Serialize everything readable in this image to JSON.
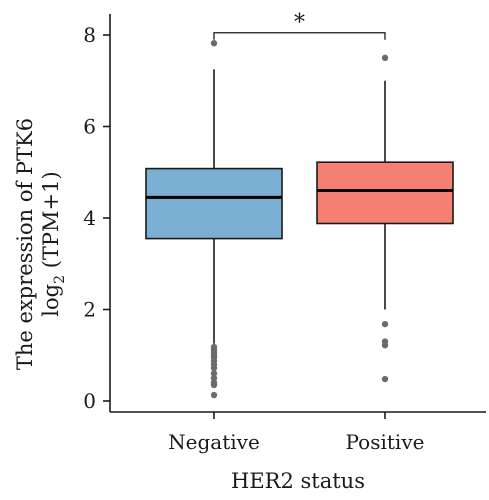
{
  "chart_data": {
    "type": "boxplot",
    "title": "",
    "xlabel": "HER2 status",
    "ylabel_line1": "The expression of PTK6",
    "ylabel_line2_prefix": "log",
    "ylabel_line2_sub": "2",
    "ylabel_line2_suffix": " (TPM+1)",
    "ylim": [
      0,
      8.3
    ],
    "yticks": [
      0,
      2,
      4,
      6,
      8
    ],
    "ytick_labels": [
      "0",
      "2",
      "4",
      "6",
      "8"
    ],
    "categories": [
      "Negative",
      "Positive"
    ],
    "groups": [
      {
        "name": "Negative",
        "color": "#7bafd4",
        "q1": 3.55,
        "median": 4.45,
        "q3": 5.08,
        "whisker_low": 1.25,
        "whisker_high": 7.25,
        "outliers": [
          7.82,
          1.18,
          1.12,
          1.06,
          1.0,
          0.95,
          0.88,
          0.8,
          0.72,
          0.6,
          0.5,
          0.4,
          0.35,
          0.13
        ]
      },
      {
        "name": "Positive",
        "color": "#f47f72",
        "q1": 3.88,
        "median": 4.6,
        "q3": 5.22,
        "whisker_low": 2.0,
        "whisker_high": 7.0,
        "outliers": [
          7.5,
          1.68,
          1.3,
          1.22,
          0.48
        ]
      }
    ],
    "significance": {
      "label": "*",
      "from": "Negative",
      "to": "Positive",
      "y": 8.05
    }
  }
}
